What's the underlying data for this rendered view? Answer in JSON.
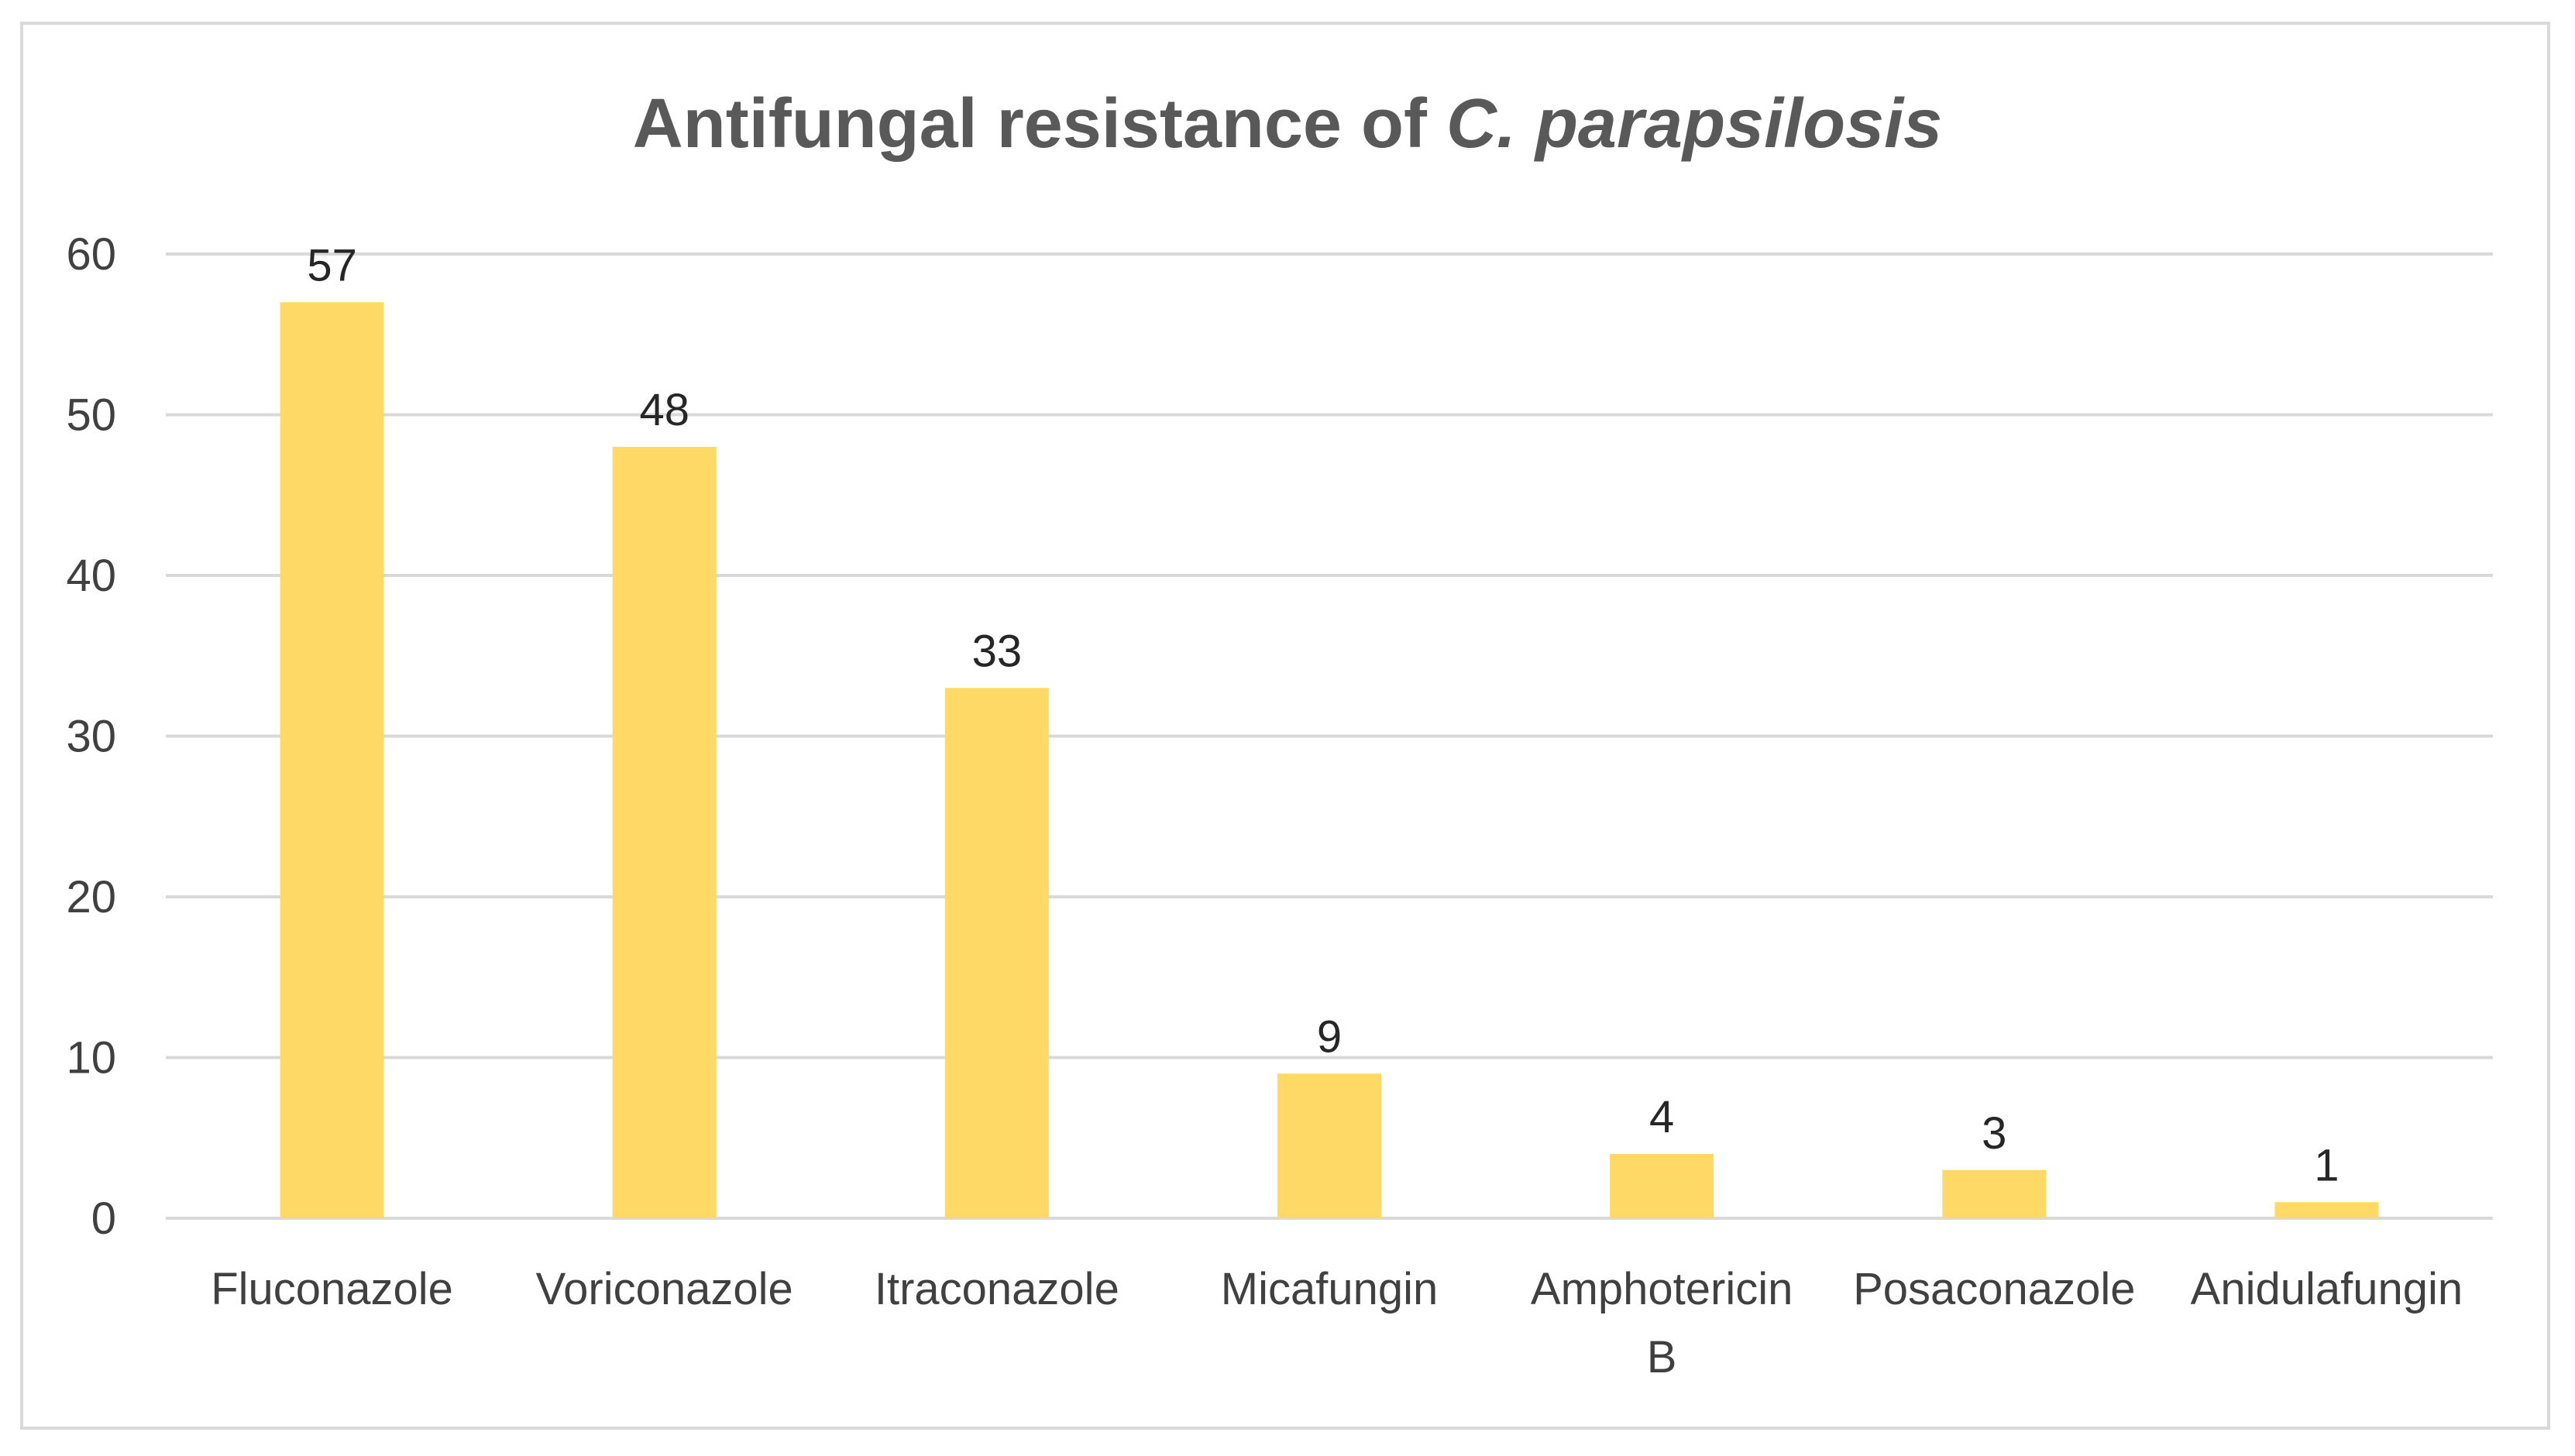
{
  "chart_data": {
    "type": "bar",
    "title": "Antifungal resistance of C. parapsilosis",
    "title_parts": {
      "plain": "Antifungal resistance of ",
      "italic": "C. parapsilosis"
    },
    "categories": [
      "Fluconazole",
      "Voriconazole",
      "Itraconazole",
      "Micafungin",
      "Amphotericin B",
      "Posaconazole",
      "Anidulafungin"
    ],
    "values": [
      57,
      48,
      33,
      9,
      4,
      3,
      1
    ],
    "data_labels": [
      "57",
      "48",
      "33",
      "9",
      "4",
      "3",
      "1"
    ],
    "xlabel": "",
    "ylabel": "",
    "ylim": [
      0,
      60
    ],
    "yticks": [
      0,
      10,
      20,
      30,
      40,
      50,
      60
    ],
    "ytick_labels": [
      "0",
      "10",
      "20",
      "30",
      "40",
      "50",
      "60"
    ],
    "grid": true,
    "legend": "none",
    "bar_color": "#FFD966",
    "grid_color": "#D9D9D9"
  }
}
